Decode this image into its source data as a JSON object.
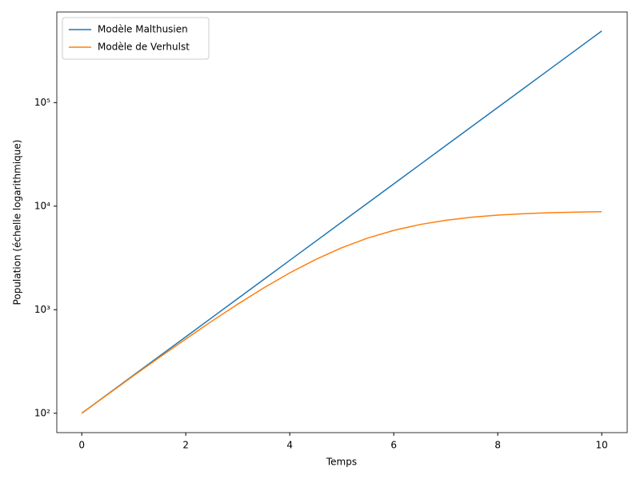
{
  "chart_data": {
    "type": "line",
    "x_label": "Temps",
    "y_label": "Population (échelle logarithmique)",
    "x": [
      0,
      0.5,
      1,
      1.5,
      2,
      2.5,
      3,
      3.5,
      4,
      4.5,
      5,
      5.5,
      6,
      6.5,
      7,
      7.5,
      8,
      8.5,
      9,
      9.5,
      10
    ],
    "series": [
      {
        "name": "Modèle Malthusien",
        "color": "#1f77b4",
        "values": [
          100,
          153,
          234,
          358,
          547,
          837,
          1281,
          1959,
          2996,
          4583,
          7011,
          10724,
          16402,
          25089,
          38378,
          58701,
          89785,
          137330,
          210060,
          321300,
          491477
        ]
      },
      {
        "name": "Modèle de Verhulst",
        "color": "#ff7f0e",
        "values": [
          100,
          152,
          231,
          348,
          521,
          774,
          1132,
          1624,
          2267,
          3059,
          3966,
          4918,
          5834,
          6643,
          7306,
          7815,
          8188,
          8452,
          8634,
          8757,
          8840
        ]
      }
    ],
    "xlim": [
      -0.48,
      10.49
    ],
    "xticks": [
      0,
      2,
      4,
      6,
      8,
      10
    ],
    "ylim": [
      65,
      750000
    ],
    "yticks": [
      {
        "value": 100,
        "label": "10²"
      },
      {
        "value": 1000,
        "label": "10³"
      },
      {
        "value": 10000,
        "label": "10⁴"
      },
      {
        "value": 100000,
        "label": "10⁵"
      }
    ],
    "y_scale": "log",
    "grid": false,
    "legend": "upper-left"
  }
}
